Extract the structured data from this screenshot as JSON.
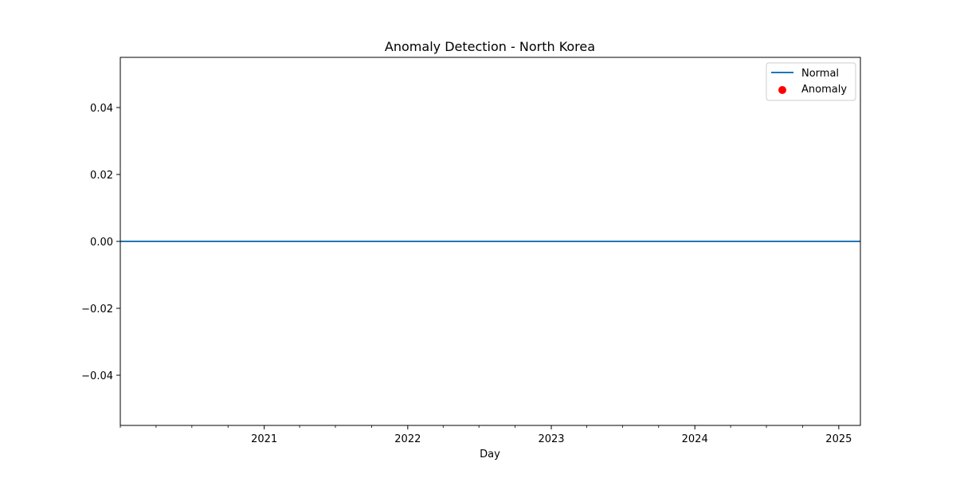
{
  "chart_data": {
    "type": "line",
    "title": "Anomaly Detection - North Korea",
    "xlabel": "Day",
    "ylabel": "",
    "x_range": [
      "2020-01-01",
      "2025-02-25"
    ],
    "x_ticks": [
      {
        "date": "2021-01-01",
        "label": "2021"
      },
      {
        "date": "2022-01-01",
        "label": "2022"
      },
      {
        "date": "2023-01-01",
        "label": "2023"
      },
      {
        "date": "2024-01-01",
        "label": "2024"
      },
      {
        "date": "2025-01-01",
        "label": "2025"
      }
    ],
    "x_minor_ticks": [
      "2020-01-01",
      "2020-04-01",
      "2020-07-01",
      "2020-10-01",
      "2021-04-01",
      "2021-07-01",
      "2021-10-01",
      "2022-04-01",
      "2022-07-01",
      "2022-10-01",
      "2023-04-01",
      "2023-07-01",
      "2023-10-01",
      "2024-04-01",
      "2024-07-01",
      "2024-10-01"
    ],
    "ylim": [
      -0.055,
      0.055
    ],
    "y_ticks": [
      {
        "value": 0.04,
        "label": "0.04"
      },
      {
        "value": 0.02,
        "label": "0.02"
      },
      {
        "value": 0.0,
        "label": "0.00"
      },
      {
        "value": -0.02,
        "label": "−0.02"
      },
      {
        "value": -0.04,
        "label": "−0.04"
      }
    ],
    "grid": false,
    "legend_position": "top-right",
    "series": [
      {
        "name": "Normal",
        "kind": "line",
        "color": "#1f77b4",
        "points": [
          {
            "x": "2020-01-01",
            "y": 0
          },
          {
            "x": "2025-02-25",
            "y": 0
          }
        ]
      },
      {
        "name": "Anomaly",
        "kind": "scatter",
        "color": "#ff0000",
        "points": []
      }
    ]
  }
}
